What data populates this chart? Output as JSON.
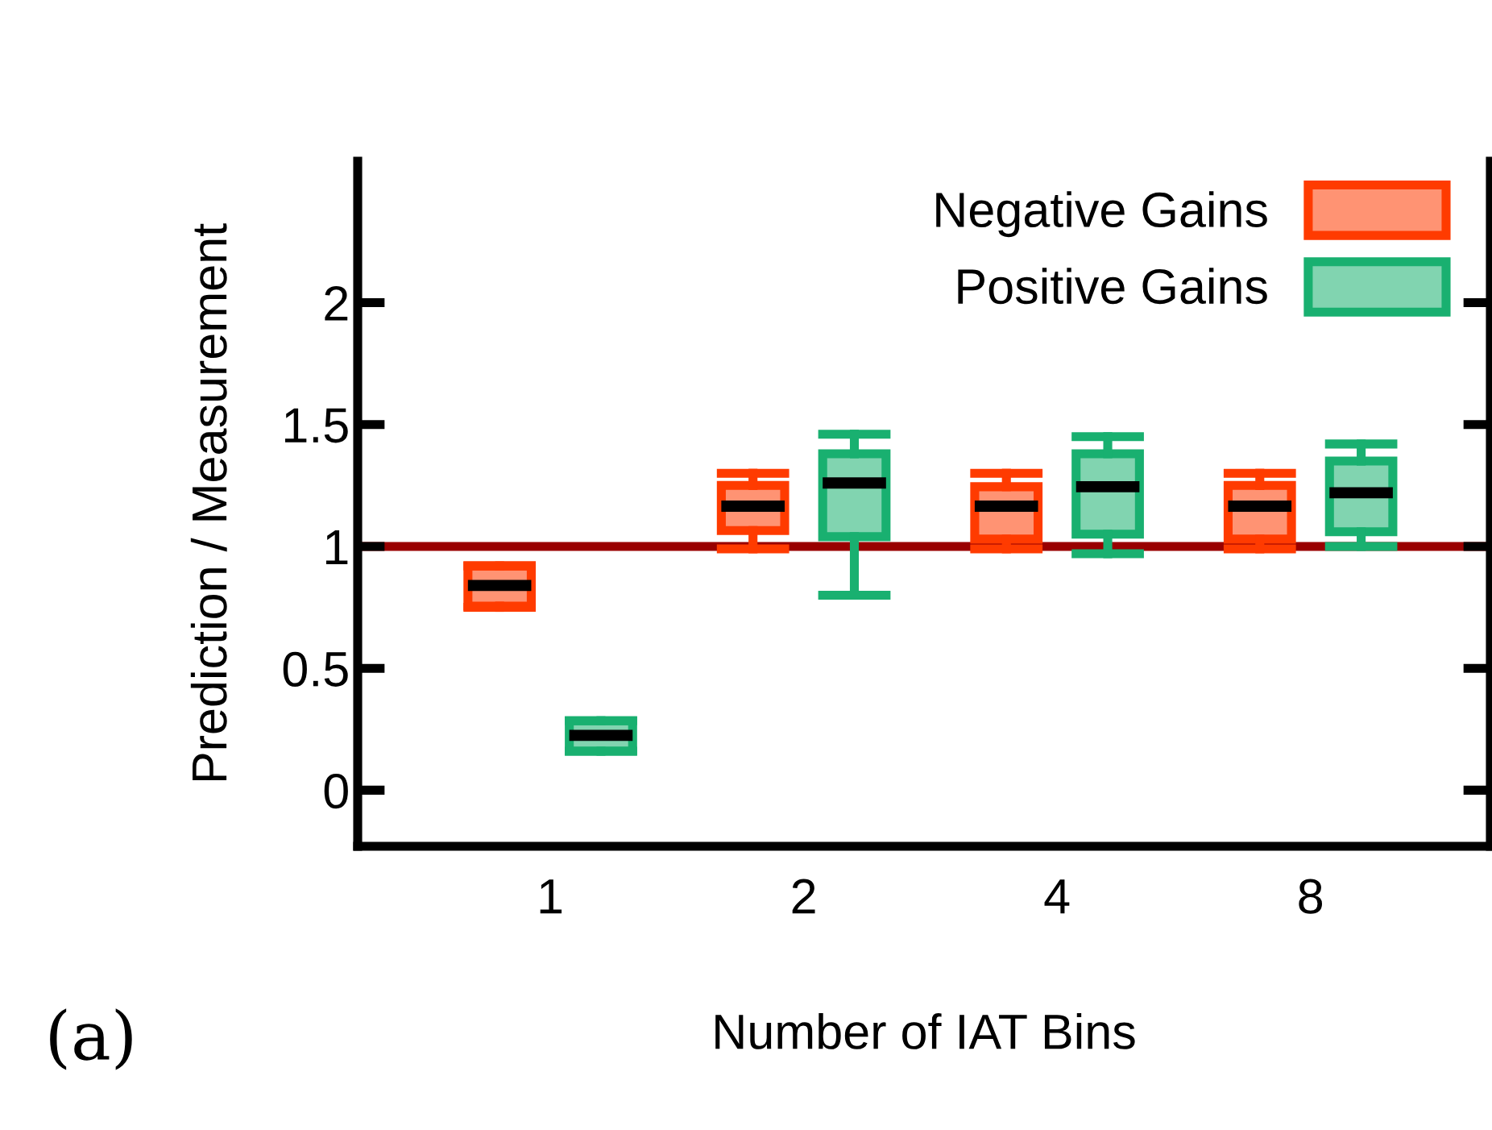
{
  "chart_data": {
    "type": "box",
    "xlabel": "Number of IAT Bins",
    "ylabel": "Prediction / Measurement",
    "categories": [
      "1",
      "2",
      "4",
      "8"
    ],
    "series": [
      {
        "name": "Negative Gains",
        "color": "#ff3b00",
        "boxes": [
          {
            "low": 0.75,
            "q1": 0.755,
            "median": 0.84,
            "q3": 0.92,
            "high": 0.92
          },
          {
            "low": 0.99,
            "q1": 1.065,
            "median": 1.165,
            "q3": 1.25,
            "high": 1.3
          },
          {
            "low": 0.99,
            "q1": 1.03,
            "median": 1.165,
            "q3": 1.245,
            "high": 1.3
          },
          {
            "low": 0.99,
            "q1": 1.03,
            "median": 1.165,
            "q3": 1.25,
            "high": 1.3
          }
        ]
      },
      {
        "name": "Positive Gains",
        "color": "#19b070",
        "boxes": [
          {
            "low": 0.16,
            "q1": 0.16,
            "median": 0.225,
            "q3": 0.285,
            "high": 0.285
          },
          {
            "low": 0.8,
            "q1": 1.04,
            "median": 1.26,
            "q3": 1.38,
            "high": 1.46
          },
          {
            "low": 0.97,
            "q1": 1.05,
            "median": 1.245,
            "q3": 1.38,
            "high": 1.45
          },
          {
            "low": 1.0,
            "q1": 1.06,
            "median": 1.22,
            "q3": 1.35,
            "high": 1.42
          }
        ]
      }
    ],
    "ylim": [
      -0.23,
      2.58
    ],
    "yticks": [
      0,
      0.5,
      1,
      1.5,
      2
    ],
    "ref_lines": [
      {
        "axis": "y",
        "value": 1,
        "color": "#990000"
      }
    ],
    "legend": "top right",
    "grid": false,
    "annotations": [
      "(a)"
    ]
  }
}
